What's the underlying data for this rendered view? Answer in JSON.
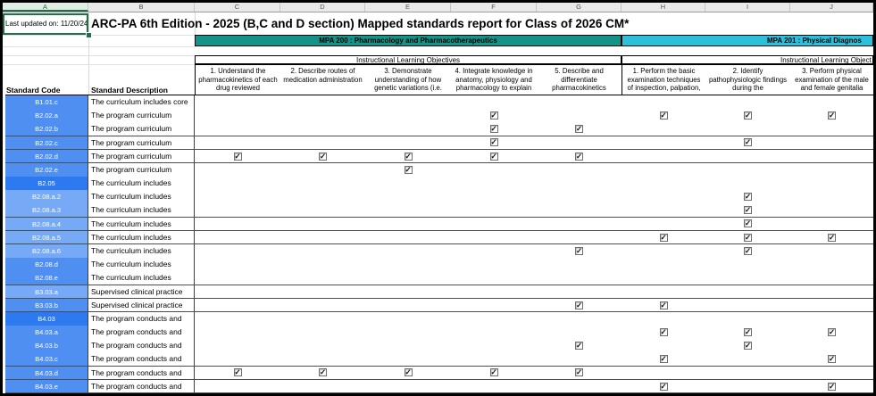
{
  "window": {
    "last_updated": "Last updated on: 11/20/24",
    "title": "ARC-PA 6th Edition - 2025 (B,C and D section) Mapped standards report for Class of 2026 CM*"
  },
  "selection": {
    "active_cell": "A1"
  },
  "column_headers": [
    "A",
    "B",
    "C",
    "D",
    "E",
    "F",
    "G",
    "H",
    "I",
    "J"
  ],
  "bands": [
    {
      "label": "MPA 200 : Pharmacology and Pharmacotherapeutics",
      "color": "#149488"
    },
    {
      "label": "MPA 201 : Physical Diagnos",
      "color": "#2cc0dc"
    }
  ],
  "ilo_left": "Instructional Learning Objectives",
  "ilo_right": "Instructional Learning Object",
  "col_labels": {
    "code": "Standard Code",
    "description": "Standard Description"
  },
  "objectives": [
    {
      "column": "C",
      "text": "1. Understand the pharmacokinetics of each drug reviewed"
    },
    {
      "column": "D",
      "text": "2. Describe routes of medication administration"
    },
    {
      "column": "E",
      "text": "3. Demonstrate understanding of how genetic variations (i.e."
    },
    {
      "column": "F",
      "text": "4. Integrate knowledge in anatomy, physiology and pharmacology to explain"
    },
    {
      "column": "G",
      "text": "5. Describe and differentiate pharmacokinetics"
    },
    {
      "column": "H",
      "text": "1. Perform the basic examination techniques of inspection, palpation,"
    },
    {
      "column": "I",
      "text": "2. Identify pathophysiologic findings during the"
    },
    {
      "column": "J",
      "text": "3. Perform physical examination of the male and female genitalia"
    }
  ],
  "rows": [
    {
      "code": "B1.01.c",
      "shade": "medium",
      "description": "The curriculum includes core",
      "checks": []
    },
    {
      "code": "B2.02.a",
      "shade": "medium",
      "description": "The program curriculum",
      "checks": [
        "F",
        "H",
        "I",
        "J"
      ]
    },
    {
      "code": "B2.02.b",
      "shade": "medium",
      "description": "The program curriculum",
      "checks": [
        "F",
        "G"
      ]
    },
    {
      "code": "B2.02.c",
      "shade": "medium",
      "description": "The program curriculum",
      "checks": [
        "F",
        "I"
      ]
    },
    {
      "code": "B2.02.d",
      "shade": "medium",
      "description": "The program curriculum",
      "checks": [
        "C",
        "D",
        "E",
        "F",
        "G"
      ]
    },
    {
      "code": "B2.02.e",
      "shade": "medium",
      "description": "The program curriculum",
      "checks": [
        "E"
      ]
    },
    {
      "code": "B2.05",
      "shade": "dark",
      "description": "The curriculum includes",
      "checks": []
    },
    {
      "code": "B2.08.a.2",
      "shade": "light",
      "description": "The curriculum includes",
      "checks": [
        "I"
      ]
    },
    {
      "code": "B2.08.a.3",
      "shade": "light",
      "description": "The curriculum includes",
      "checks": [
        "I"
      ]
    },
    {
      "code": "B2.08.a.4",
      "shade": "light",
      "description": "The curriculum includes",
      "checks": [
        "I"
      ]
    },
    {
      "code": "B2.08.a.5",
      "shade": "light",
      "description": "The curriculum includes",
      "checks": [
        "H",
        "I",
        "J"
      ]
    },
    {
      "code": "B2.08.a.6",
      "shade": "light",
      "description": "The curriculum includes",
      "checks": [
        "G",
        "I"
      ]
    },
    {
      "code": "B2.08.d",
      "shade": "medium",
      "description": "The curriculum includes",
      "checks": []
    },
    {
      "code": "B2.08.e",
      "shade": "medium",
      "description": "The curriculum includes",
      "checks": []
    },
    {
      "code": "B3.03.a",
      "shade": "light",
      "description": "Supervised clinical practice",
      "checks": []
    },
    {
      "code": "B3.03.b",
      "shade": "medium",
      "description": "Supervised clinical practice",
      "checks": [
        "G",
        "H"
      ]
    },
    {
      "code": "B4.03",
      "shade": "dark",
      "description": "The program conducts and",
      "checks": []
    },
    {
      "code": "B4.03.a",
      "shade": "medium",
      "description": "The program conducts and",
      "checks": [
        "H",
        "I",
        "J"
      ]
    },
    {
      "code": "B4.03.b",
      "shade": "medium",
      "description": "The program conducts and",
      "checks": [
        "G",
        "I"
      ]
    },
    {
      "code": "B4.03.c",
      "shade": "medium",
      "description": "The program conducts and",
      "checks": [
        "H",
        "J"
      ]
    },
    {
      "code": "B4.03.d",
      "shade": "medium",
      "description": "The program conducts and",
      "checks": [
        "C",
        "D",
        "E",
        "F",
        "G"
      ]
    },
    {
      "code": "B4.03.e",
      "shade": "medium",
      "description": "The program conducts and",
      "checks": [
        "H",
        "J"
      ]
    }
  ],
  "checkbox_glyph": "✓",
  "colors": {
    "band_left": "#149488",
    "band_right": "#2cc0dc",
    "code_medium": "#4f8ff2",
    "code_dark": "#2c79f0",
    "code_light": "#77aaf6",
    "selection_green": "#1e7145"
  }
}
